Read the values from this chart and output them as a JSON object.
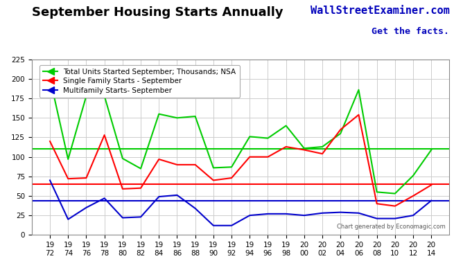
{
  "title": "September Housing Starts Annually",
  "watermark1": "WallStreetExaminer.com",
  "watermark2": "Get the facts.",
  "chart_credit": "Chart generated by Economagic.com",
  "years": [
    1972,
    1974,
    1976,
    1978,
    1980,
    1982,
    1984,
    1986,
    1988,
    1990,
    1992,
    1994,
    1996,
    1998,
    2000,
    2002,
    2004,
    2006,
    2008,
    2010,
    2012,
    2014
  ],
  "total": [
    201,
    97,
    178,
    178,
    98,
    85,
    155,
    150,
    152,
    86,
    87,
    126,
    124,
    140,
    111,
    113,
    130,
    186,
    55,
    53,
    76,
    109
  ],
  "single_family": [
    120,
    72,
    73,
    128,
    59,
    60,
    97,
    90,
    90,
    70,
    73,
    100,
    100,
    113,
    109,
    104,
    135,
    154,
    40,
    37,
    50,
    64
  ],
  "multifamily": [
    70,
    20,
    35,
    47,
    22,
    23,
    49,
    51,
    34,
    12,
    12,
    25,
    27,
    27,
    25,
    28,
    29,
    28,
    21,
    21,
    25,
    44
  ],
  "total_mean": 110,
  "single_mean": 65,
  "multi_mean": 44,
  "total_color": "#00cc00",
  "single_color": "#ff0000",
  "multi_color": "#0000cc",
  "ylim": [
    0,
    225
  ],
  "yticks": [
    0,
    25,
    50,
    75,
    100,
    125,
    150,
    175,
    200,
    225
  ],
  "legend_labels": [
    "Total Units Started September; Thousands; NSA",
    "Single Family Starts - September",
    "Multifamily Starts- September"
  ],
  "background_color": "#ffffff",
  "grid_color": "#cccccc",
  "title_fontsize": 13,
  "axis_fontsize": 7.5
}
